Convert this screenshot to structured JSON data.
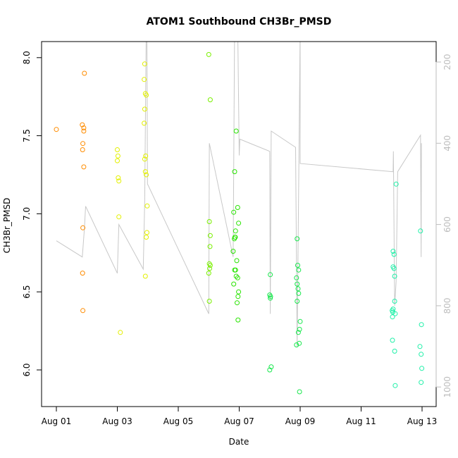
{
  "chart_data": {
    "type": "scatter",
    "title": "ATOM1 Southbound CH3Br_PMSD",
    "xlabel": "Date",
    "ylabel": "CH3Br_PMSD",
    "x_ticks": [
      "Aug 01",
      "Aug 03",
      "Aug 05",
      "Aug 07",
      "Aug 09",
      "Aug 11",
      "Aug 13"
    ],
    "xlim_days": [
      0.6,
      13.5
    ],
    "ylim": [
      5.76,
      8.08
    ],
    "y_ticks": [
      "6.0",
      "6.5",
      "7.0",
      "7.5",
      "8.0"
    ],
    "right_axis": {
      "ticks": [
        "200",
        "400",
        "600",
        "800",
        "1000"
      ],
      "range": [
        1060,
        160
      ],
      "color": "#bdbdbd"
    },
    "grid": false,
    "series": [
      {
        "color": "#ff8c00",
        "points": [
          [
            1.0,
            7.54
          ],
          [
            1.85,
            7.57
          ],
          [
            1.87,
            7.45
          ],
          [
            1.86,
            7.41
          ],
          [
            1.9,
            7.55
          ],
          [
            1.9,
            7.53
          ],
          [
            1.92,
            7.9
          ],
          [
            1.9,
            7.3
          ],
          [
            1.87,
            6.91
          ],
          [
            1.86,
            6.62
          ],
          [
            1.87,
            6.38
          ]
        ]
      },
      {
        "color": "#e3f000",
        "points": [
          [
            3.0,
            7.41
          ],
          [
            3.02,
            7.37
          ],
          [
            3.0,
            7.34
          ],
          [
            3.03,
            7.23
          ],
          [
            3.05,
            7.21
          ],
          [
            3.05,
            6.98
          ],
          [
            3.1,
            6.24
          ],
          [
            3.9,
            7.96
          ],
          [
            3.88,
            7.86
          ],
          [
            3.92,
            7.77
          ],
          [
            3.95,
            7.76
          ],
          [
            3.9,
            7.67
          ],
          [
            3.88,
            7.58
          ],
          [
            3.93,
            7.37
          ],
          [
            3.9,
            7.35
          ],
          [
            3.92,
            7.27
          ],
          [
            3.95,
            7.25
          ],
          [
            3.98,
            7.05
          ],
          [
            3.97,
            6.88
          ],
          [
            3.95,
            6.85
          ],
          [
            3.92,
            6.6
          ]
        ]
      },
      {
        "color": "#7af000",
        "points": [
          [
            6.0,
            8.02
          ],
          [
            6.05,
            7.73
          ],
          [
            6.02,
            6.95
          ],
          [
            6.05,
            6.86
          ],
          [
            6.04,
            6.79
          ],
          [
            6.02,
            6.68
          ],
          [
            6.05,
            6.67
          ],
          [
            6.03,
            6.65
          ],
          [
            6.0,
            6.62
          ],
          [
            6.02,
            6.44
          ]
        ]
      },
      {
        "color": "#28e400",
        "points": [
          [
            6.9,
            7.53
          ],
          [
            6.85,
            7.27
          ],
          [
            6.82,
            7.01
          ],
          [
            6.95,
            7.04
          ],
          [
            6.88,
            6.89
          ],
          [
            6.86,
            6.85
          ],
          [
            6.84,
            6.84
          ],
          [
            6.87,
            6.85
          ],
          [
            6.98,
            6.94
          ],
          [
            6.8,
            6.76
          ],
          [
            6.92,
            6.7
          ],
          [
            6.85,
            6.64
          ],
          [
            6.88,
            6.64
          ],
          [
            6.82,
            6.55
          ],
          [
            6.9,
            6.6
          ],
          [
            6.95,
            6.59
          ],
          [
            6.98,
            6.5
          ],
          [
            6.96,
            6.47
          ],
          [
            6.93,
            6.43
          ],
          [
            6.96,
            6.32
          ]
        ]
      },
      {
        "color": "#1ae84e",
        "points": [
          [
            8.0,
            6.48
          ],
          [
            8.02,
            6.61
          ],
          [
            8.03,
            6.47
          ],
          [
            8.02,
            6.46
          ],
          [
            8.0,
            6.0
          ],
          [
            8.05,
            6.02
          ],
          [
            8.9,
            6.84
          ],
          [
            8.92,
            6.67
          ],
          [
            8.95,
            6.64
          ],
          [
            8.88,
            6.59
          ],
          [
            8.9,
            6.55
          ],
          [
            8.93,
            6.52
          ],
          [
            8.95,
            6.49
          ],
          [
            8.9,
            6.44
          ],
          [
            9.0,
            6.31
          ],
          [
            8.98,
            6.26
          ],
          [
            8.94,
            6.24
          ],
          [
            8.88,
            6.16
          ],
          [
            8.97,
            6.17
          ],
          [
            8.98,
            5.86
          ]
        ]
      },
      {
        "color": "#1ff0a8",
        "points": [
          [
            12.05,
            6.76
          ],
          [
            12.08,
            6.74
          ],
          [
            12.05,
            6.66
          ],
          [
            12.08,
            6.65
          ],
          [
            12.1,
            6.6
          ],
          [
            12.05,
            6.39
          ],
          [
            12.02,
            6.38
          ],
          [
            12.04,
            6.37
          ],
          [
            12.12,
            6.36
          ],
          [
            12.03,
            6.34
          ],
          [
            12.1,
            6.44
          ],
          [
            12.15,
            7.19
          ],
          [
            12.03,
            6.19
          ],
          [
            12.1,
            6.12
          ],
          [
            12.12,
            5.9
          ],
          [
            12.95,
            6.89
          ],
          [
            12.98,
            6.29
          ],
          [
            12.93,
            6.15
          ],
          [
            12.97,
            6.1
          ],
          [
            12.99,
            6.01
          ],
          [
            12.97,
            5.92
          ]
        ]
      }
    ],
    "gray_line": {
      "color": "#c8c8c8",
      "points": [
        [
          1.0,
          640
        ],
        [
          1.85,
          680
        ],
        [
          1.92,
          610
        ],
        [
          1.96,
          555
        ],
        [
          3.0,
          720
        ],
        [
          3.05,
          600
        ],
        [
          3.85,
          710
        ],
        [
          3.9,
          540
        ],
        [
          3.95,
          100
        ],
        [
          3.97,
          120
        ],
        [
          3.99,
          500
        ],
        [
          6.0,
          820
        ],
        [
          6.02,
          400
        ],
        [
          6.8,
          680
        ],
        [
          6.85,
          100
        ],
        [
          6.95,
          100
        ],
        [
          7.0,
          430
        ],
        [
          7.02,
          390
        ],
        [
          8.0,
          420
        ],
        [
          8.02,
          820
        ],
        [
          8.05,
          370
        ],
        [
          8.85,
          410
        ],
        [
          8.9,
          900
        ],
        [
          9.0,
          120
        ],
        [
          9.0,
          450
        ],
        [
          12.05,
          470
        ],
        [
          12.06,
          420
        ],
        [
          12.1,
          800
        ],
        [
          12.15,
          740
        ],
        [
          12.2,
          470
        ],
        [
          12.95,
          380
        ],
        [
          12.97,
          680
        ],
        [
          12.98,
          400
        ]
      ]
    }
  }
}
